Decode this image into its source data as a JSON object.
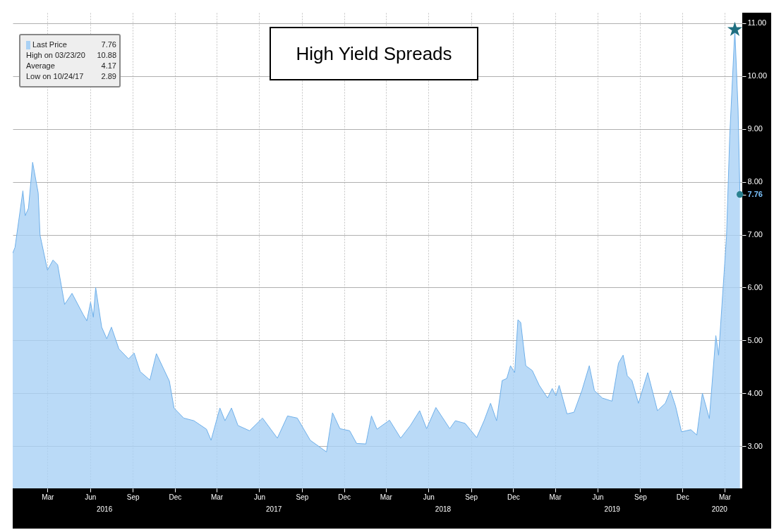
{
  "chart_data": {
    "type": "area",
    "title": "High Yield Spreads",
    "x": [
      "2015-12-17",
      "2015-12-22",
      "2016-01-08",
      "2016-01-13",
      "2016-01-20",
      "2016-01-29",
      "2016-02-10",
      "2016-02-14",
      "2016-03-01",
      "2016-03-13",
      "2016-03-23",
      "2016-04-07",
      "2016-04-23",
      "2016-05-17",
      "2016-05-25",
      "2016-06-02",
      "2016-06-08",
      "2016-06-13",
      "2016-06-26",
      "2016-07-07",
      "2016-07-17",
      "2016-08-02",
      "2016-08-23",
      "2016-09-04",
      "2016-09-17",
      "2016-10-08",
      "2016-10-22",
      "2016-11-19",
      "2016-11-29",
      "2016-12-20",
      "2017-01-11",
      "2017-02-07",
      "2017-02-17",
      "2017-03-08",
      "2017-03-19",
      "2017-04-02",
      "2017-04-16",
      "2017-05-11",
      "2017-06-08",
      "2017-07-10",
      "2017-08-01",
      "2017-08-22",
      "2017-09-19",
      "2017-10-24",
      "2017-11-06",
      "2017-11-22",
      "2017-12-13",
      "2017-12-28",
      "2018-01-17",
      "2018-01-29",
      "2018-02-10",
      "2018-03-09",
      "2018-04-02",
      "2018-04-23",
      "2018-05-13",
      "2018-05-28",
      "2018-06-17",
      "2018-07-17",
      "2018-07-29",
      "2018-08-19",
      "2018-09-13",
      "2018-09-29",
      "2018-10-13",
      "2018-10-26",
      "2018-11-07",
      "2018-11-17",
      "2018-11-25",
      "2018-12-04",
      "2018-12-11",
      "2018-12-17",
      "2018-12-28",
      "2019-01-11",
      "2019-01-26",
      "2019-02-13",
      "2019-02-23",
      "2019-03-03",
      "2019-03-10",
      "2019-03-27",
      "2019-04-11",
      "2019-04-28",
      "2019-05-14",
      "2019-05-25",
      "2019-06-11",
      "2019-07-02",
      "2019-07-16",
      "2019-07-26",
      "2019-08-04",
      "2019-08-14",
      "2019-08-28",
      "2019-09-17",
      "2019-10-08",
      "2019-10-25",
      "2019-11-05",
      "2019-11-16",
      "2019-11-29",
      "2019-12-19",
      "2020-01-01",
      "2020-01-13",
      "2020-01-28",
      "2020-02-11",
      "2020-02-17",
      "2020-03-05",
      "2020-03-12",
      "2020-03-23",
      "2020-03-30",
      "2020-04-03"
    ],
    "series": [
      {
        "name": "Last Price",
        "color": "#a9d1f5",
        "values": [
          6.65,
          6.76,
          7.83,
          7.36,
          7.5,
          8.37,
          7.79,
          6.99,
          6.33,
          6.52,
          6.43,
          5.68,
          5.89,
          5.49,
          5.37,
          5.72,
          5.44,
          6.0,
          5.25,
          5.03,
          5.25,
          4.84,
          4.65,
          4.76,
          4.41,
          4.25,
          4.75,
          4.23,
          3.72,
          3.53,
          3.48,
          3.32,
          3.11,
          3.72,
          3.48,
          3.72,
          3.39,
          3.29,
          3.53,
          3.15,
          3.57,
          3.53,
          3.11,
          2.89,
          3.63,
          3.33,
          3.29,
          3.05,
          3.04,
          3.57,
          3.32,
          3.49,
          3.15,
          3.39,
          3.67,
          3.33,
          3.73,
          3.33,
          3.48,
          3.43,
          3.16,
          3.48,
          3.81,
          3.48,
          4.24,
          4.28,
          4.52,
          4.39,
          5.39,
          5.34,
          4.52,
          4.43,
          4.15,
          3.91,
          4.09,
          3.95,
          4.15,
          3.61,
          3.64,
          4.05,
          4.52,
          4.05,
          3.91,
          3.85,
          4.57,
          4.72,
          4.33,
          4.24,
          3.81,
          4.39,
          3.67,
          3.81,
          4.05,
          3.76,
          3.27,
          3.31,
          3.21,
          4.0,
          3.52,
          5.09,
          4.72,
          6.96,
          8.87,
          10.88,
          9.37,
          7.76
        ]
      },
      {
        "type": "scatter",
        "marker": "star",
        "color": "#1f6f80",
        "x": [
          "2020-03-23"
        ],
        "values": [
          10.88
        ]
      }
    ],
    "annotations": [
      "7.76",
      "High on 03/23/20 10.88",
      "Average 4.17",
      "Low on 10/24/17 2.89",
      "2016",
      "2017",
      "2018",
      "2019",
      "2020"
    ],
    "xlim": [
      "2015-12-17",
      "2020-04-08"
    ],
    "xticks": [
      {
        "value": "2016-03-01",
        "label": "Mar"
      },
      {
        "value": "2016-06-01",
        "label": "Jun"
      },
      {
        "value": "2016-09-01",
        "label": "Sep"
      },
      {
        "value": "2016-12-01",
        "label": "Dec"
      },
      {
        "value": "2017-03-01",
        "label": "Mar"
      },
      {
        "value": "2017-06-01",
        "label": "Jun"
      },
      {
        "value": "2017-09-01",
        "label": "Sep"
      },
      {
        "value": "2017-12-01",
        "label": "Dec"
      },
      {
        "value": "2018-03-01",
        "label": "Mar"
      },
      {
        "value": "2018-06-01",
        "label": "Jun"
      },
      {
        "value": "2018-09-01",
        "label": "Sep"
      },
      {
        "value": "2018-12-01",
        "label": "Dec"
      },
      {
        "value": "2019-03-01",
        "label": "Mar"
      },
      {
        "value": "2019-06-01",
        "label": "Jun"
      },
      {
        "value": "2019-09-01",
        "label": "Sep"
      },
      {
        "value": "2019-12-01",
        "label": "Dec"
      },
      {
        "value": "2020-03-01",
        "label": "Mar"
      }
    ],
    "ylim": [
      2.2,
      11.2
    ],
    "yticks": [
      {
        "value": 3,
        "label": "3.00"
      },
      {
        "value": 4,
        "label": "4.00"
      },
      {
        "value": 5,
        "label": "5.00"
      },
      {
        "value": 6,
        "label": "6.00"
      },
      {
        "value": 7,
        "label": "7.00"
      },
      {
        "value": 7.76,
        "label": "7.76"
      },
      {
        "value": 8,
        "label": "8.00"
      },
      {
        "value": 9,
        "label": "9.00"
      },
      {
        "value": 10,
        "label": "10.00"
      },
      {
        "value": 11,
        "label": "11.00"
      }
    ],
    "grid": true,
    "legend": "top left"
  }
}
